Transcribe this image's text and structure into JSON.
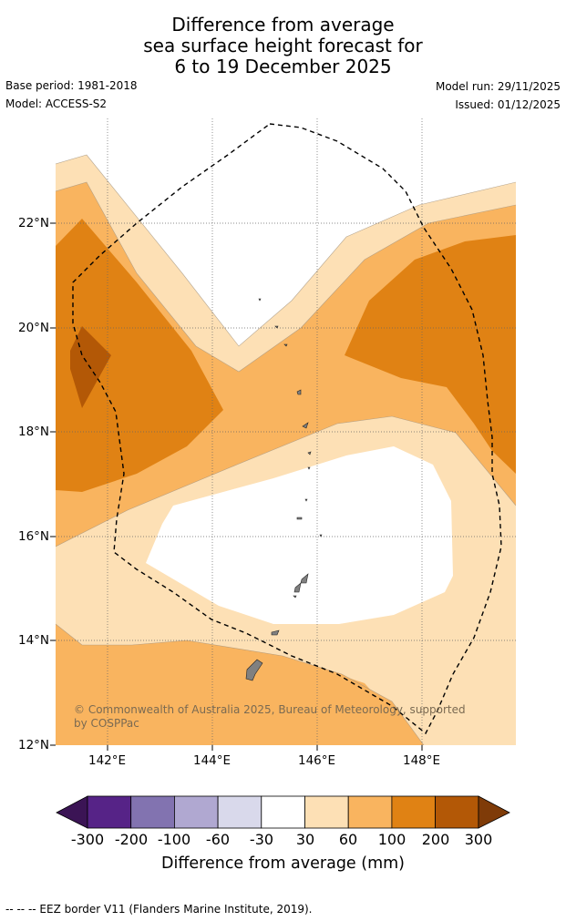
{
  "title": {
    "line1": "Difference from average",
    "line2": "sea surface height forecast for",
    "line3": "6 to 19 December 2025"
  },
  "meta": {
    "base_period": "Base period: 1981-2018",
    "model": "Model: ACCESS-S2",
    "model_run": "Model run: 29/11/2025",
    "issued": "Issued: 01/12/2025"
  },
  "map": {
    "lat_labels": [
      "22°N",
      "20°N",
      "18°N",
      "16°N",
      "14°N",
      "12°N"
    ],
    "lon_labels": [
      "142°E",
      "144°E",
      "146°E",
      "148°E"
    ],
    "credit_line1": "© Commonwealth of Australia 2025, Bureau of Meteorology, supported",
    "credit_line2": "by COSPPac"
  },
  "colorbar": {
    "labels": [
      "-300",
      "-200",
      "-100",
      "-60",
      "-30",
      "30",
      "60",
      "100",
      "200",
      "300"
    ],
    "colors": [
      "#3b1455",
      "#562387",
      "#8273b0",
      "#b0a8d1",
      "#d9d9eb",
      "#ffffff",
      "#fde0b5",
      "#f9b45f",
      "#e08214",
      "#b35806",
      "#7f3b08"
    ],
    "title": "Difference from average (mm)"
  },
  "footer": {
    "legend": "--  --  -- EEZ border V11 (Flanders Marine Institute, 2019)."
  }
}
